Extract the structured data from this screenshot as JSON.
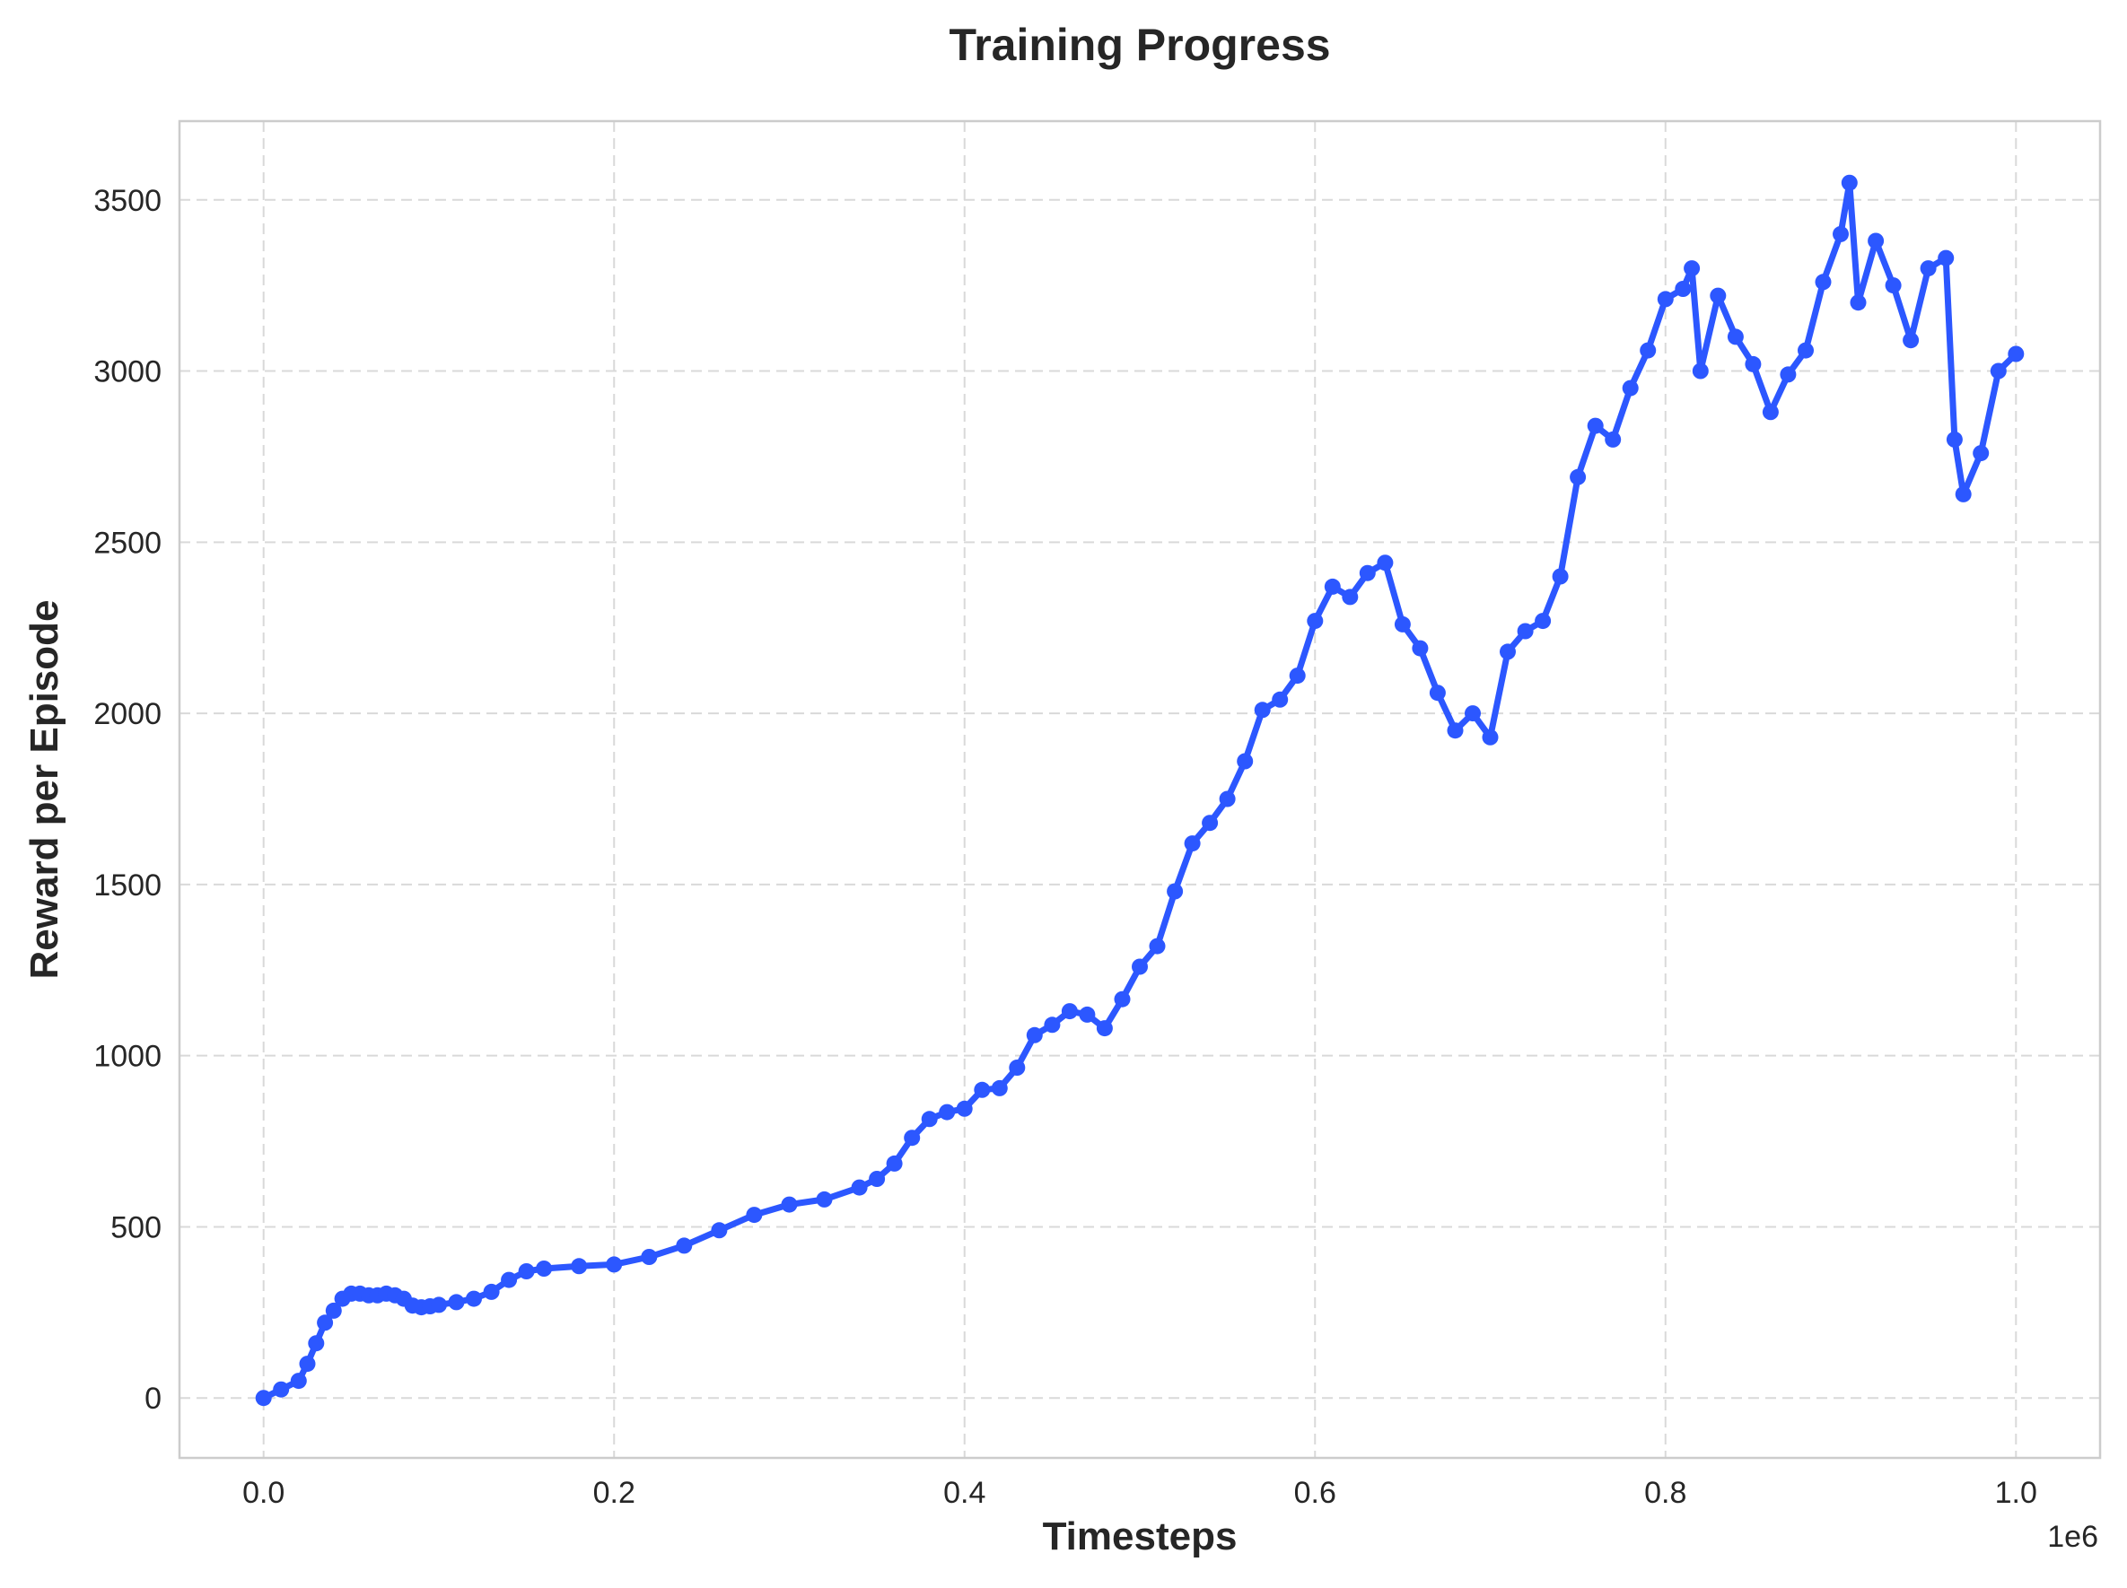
{
  "chart_data": {
    "type": "line",
    "title": "Training Progress",
    "xlabel": "Timesteps",
    "ylabel": "Reward per Episode",
    "x_offset_label": "1e6",
    "x_ticks": [
      "0.0",
      "0.2",
      "0.4",
      "0.6",
      "0.8",
      "1.0"
    ],
    "y_ticks": [
      "0",
      "500",
      "1000",
      "1500",
      "2000",
      "2500",
      "3000",
      "3500"
    ],
    "xlim": [
      -48000,
      1048000
    ],
    "ylim": [
      -175,
      3730
    ],
    "grid": true,
    "line_color": "#2c57ff",
    "marker": "circle",
    "series": [
      {
        "x": [
          0,
          10000,
          20000,
          25000,
          30000,
          35000,
          40000,
          45000,
          50000,
          55000,
          60000,
          65000,
          70000,
          75000,
          80000,
          85000,
          90000,
          95000,
          100000,
          110000,
          120000,
          130000,
          140000,
          150000,
          160000,
          180000,
          200000,
          220000,
          240000,
          260000,
          280000,
          300000,
          320000,
          340000,
          350000,
          360000,
          370000,
          380000,
          390000,
          400000,
          410000,
          420000,
          430000,
          440000,
          450000,
          460000,
          470000,
          480000,
          490000,
          500000,
          510000,
          520000,
          530000,
          540000,
          550000,
          560000,
          570000,
          580000,
          590000,
          600000,
          610000,
          620000,
          630000,
          640000,
          650000,
          660000,
          670000,
          680000,
          690000,
          700000,
          710000,
          720000,
          730000,
          740000,
          750000,
          760000,
          770000,
          780000,
          790000,
          800000,
          810000,
          815000,
          820000,
          830000,
          840000,
          850000,
          860000,
          870000,
          880000,
          890000,
          900000,
          905000,
          910000,
          920000,
          930000,
          940000,
          950000,
          960000,
          965000,
          970000,
          980000,
          990000,
          1000000
        ],
        "y": [
          0,
          25,
          50,
          100,
          160,
          220,
          255,
          290,
          305,
          305,
          300,
          300,
          305,
          300,
          290,
          270,
          265,
          268,
          272,
          280,
          290,
          310,
          345,
          370,
          378,
          385,
          390,
          412,
          445,
          490,
          535,
          565,
          580,
          615,
          640,
          685,
          760,
          815,
          835,
          845,
          900,
          905,
          965,
          1060,
          1090,
          1130,
          1120,
          1080,
          1165,
          1260,
          1320,
          1480,
          1620,
          1680,
          1750,
          1860,
          2010,
          2040,
          2110,
          2270,
          2370,
          2340,
          2410,
          2440,
          2260,
          2190,
          2060,
          1950,
          2000,
          1930,
          2180,
          2240,
          2270,
          2400,
          2690,
          2840,
          2800,
          2950,
          3060,
          3210,
          3240,
          3300,
          3000,
          3220,
          3100,
          3020,
          2880,
          2990,
          3060,
          3260,
          3400,
          3550,
          3200,
          3380,
          3250,
          3090,
          3300,
          3330,
          2800,
          2640,
          2760,
          3000,
          3050
        ]
      }
    ]
  }
}
